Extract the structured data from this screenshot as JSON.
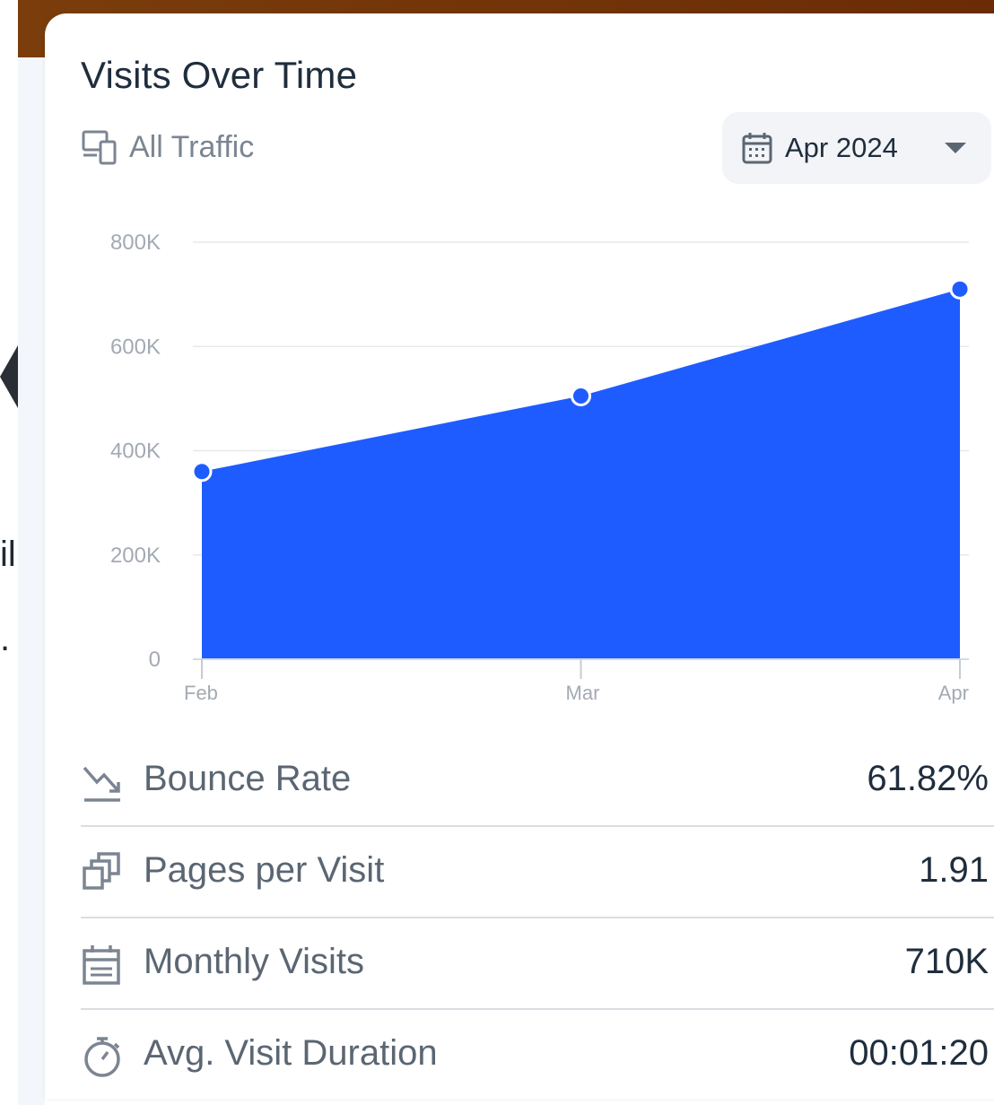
{
  "left_fragment": {
    "text1": "il",
    "text2": "."
  },
  "card": {
    "title": "Visits Over Time",
    "traffic_label": "All Traffic",
    "date_selector": "Apr 2024"
  },
  "chart_data": {
    "type": "area",
    "categories": [
      "Feb",
      "Mar",
      "Apr"
    ],
    "series": [
      {
        "values": [
          360000,
          505000,
          710000
        ]
      }
    ],
    "y_ticks": [
      "0",
      "200K",
      "400K",
      "600K",
      "800K"
    ],
    "ylim": [
      0,
      800000
    ],
    "grid": true,
    "color": "#1f5cff"
  },
  "metrics": [
    {
      "label": "Bounce Rate",
      "value": "61.82%",
      "icon": "trending-icon"
    },
    {
      "label": "Pages per Visit",
      "value": "1.91",
      "icon": "pages-icon"
    },
    {
      "label": "Monthly Visits",
      "value": "710K",
      "icon": "calendar-icon"
    },
    {
      "label": "Avg. Visit Duration",
      "value": "00:01:20",
      "icon": "timer-icon"
    }
  ]
}
